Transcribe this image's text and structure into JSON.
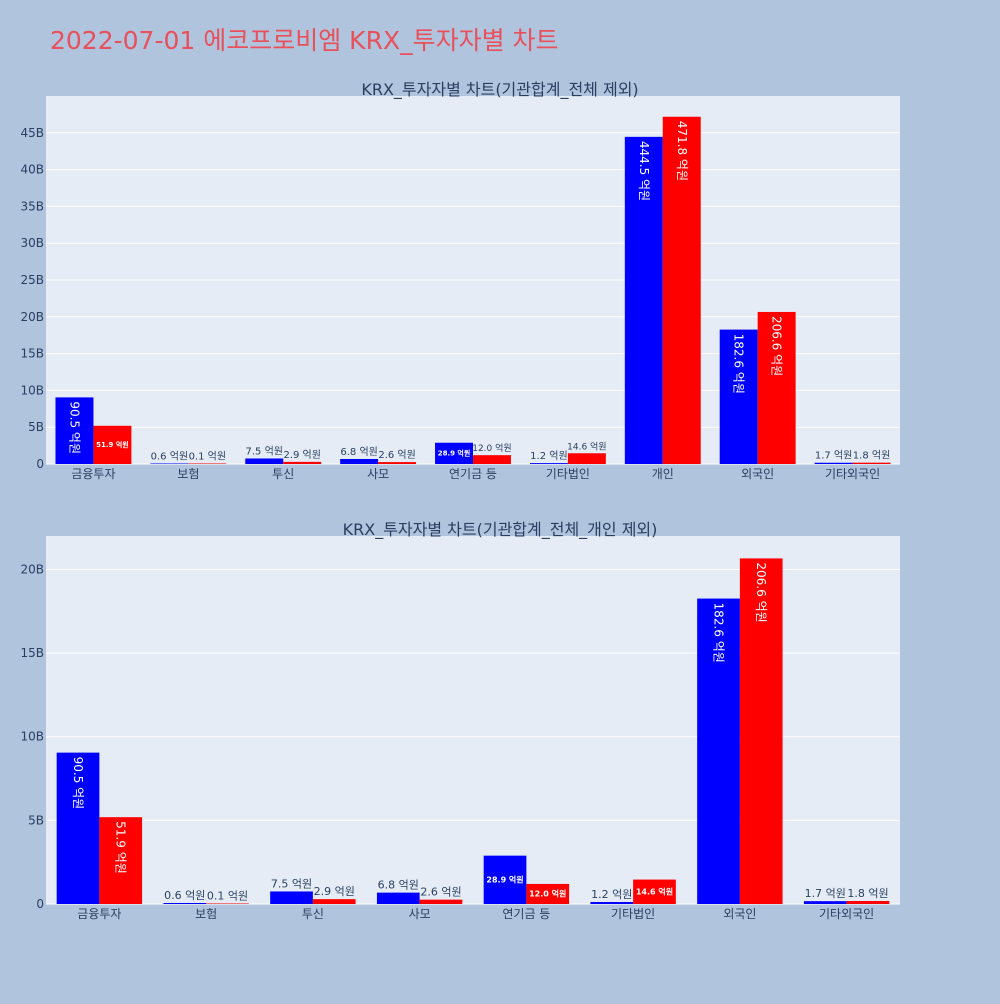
{
  "page": {
    "title": "2022-07-01 에코프로비엠 KRX_투자자별 차트",
    "title_color": "#e8505b",
    "background": "#b0c4de",
    "plot_background": "#e5ecf6"
  },
  "chart_data": [
    {
      "type": "bar",
      "title": "KRX_투자자별 차트(기관합계_전체 제외)",
      "categories": [
        "금융투자",
        "보험",
        "투신",
        "사모",
        "연기금 등",
        "기타법인",
        "개인",
        "외국인",
        "기타외국인"
      ],
      "ylim": [
        0,
        50000000000
      ],
      "yticks": [
        0,
        5000000000,
        10000000000,
        15000000000,
        20000000000,
        25000000000,
        30000000000,
        35000000000,
        40000000000,
        45000000000
      ],
      "ytick_labels": [
        "0",
        "5B",
        "10B",
        "15B",
        "20B",
        "25B",
        "30B",
        "35B",
        "40B",
        "45B"
      ],
      "grid": true,
      "series": [
        {
          "color": "#0000ff",
          "values": [
            9050000000,
            60000000,
            750000000,
            680000000,
            2890000000,
            120000000,
            44450000000,
            18260000000,
            170000000
          ],
          "labels": [
            "90.5 억원",
            "0.6 억원",
            "7.5 억원",
            "6.8 억원",
            "28.9 억원",
            "1.2 억원",
            "444.5 억원",
            "182.6 억원",
            "1.7 억원"
          ]
        },
        {
          "color": "#ff0000",
          "values": [
            5190000000,
            10000000,
            290000000,
            260000000,
            1200000000,
            1460000000,
            47180000000,
            20660000000,
            180000000
          ],
          "labels": [
            "51.9 억원",
            "0.1 억원",
            "2.9 억원",
            "2.6 억원",
            "12.0 억원",
            "14.6 억원",
            "471.8 억원",
            "206.6 억원",
            "1.8 억원"
          ]
        }
      ]
    },
    {
      "type": "bar",
      "title": "KRX_투자자별 차트(기관합계_전체_개인 제외)",
      "categories": [
        "금융투자",
        "보험",
        "투신",
        "사모",
        "연기금 등",
        "기타법인",
        "외국인",
        "기타외국인"
      ],
      "ylim": [
        0,
        22000000000
      ],
      "yticks": [
        0,
        5000000000,
        10000000000,
        15000000000,
        20000000000
      ],
      "ytick_labels": [
        "0",
        "5B",
        "10B",
        "15B",
        "20B"
      ],
      "grid": true,
      "series": [
        {
          "color": "#0000ff",
          "values": [
            9050000000,
            60000000,
            750000000,
            680000000,
            2890000000,
            120000000,
            18260000000,
            170000000
          ],
          "labels": [
            "90.5 억원",
            "0.6 억원",
            "7.5 억원",
            "6.8 억원",
            "28.9 억원",
            "1.2 억원",
            "182.6 억원",
            "1.7 억원"
          ]
        },
        {
          "color": "#ff0000",
          "values": [
            5190000000,
            10000000,
            290000000,
            260000000,
            1200000000,
            1460000000,
            20660000000,
            180000000
          ],
          "labels": [
            "51.9 억원",
            "0.1 억원",
            "2.9 억원",
            "2.6 억원",
            "12.0 억원",
            "14.6 억원",
            "206.6 억원",
            "1.8 억원"
          ]
        }
      ]
    }
  ]
}
